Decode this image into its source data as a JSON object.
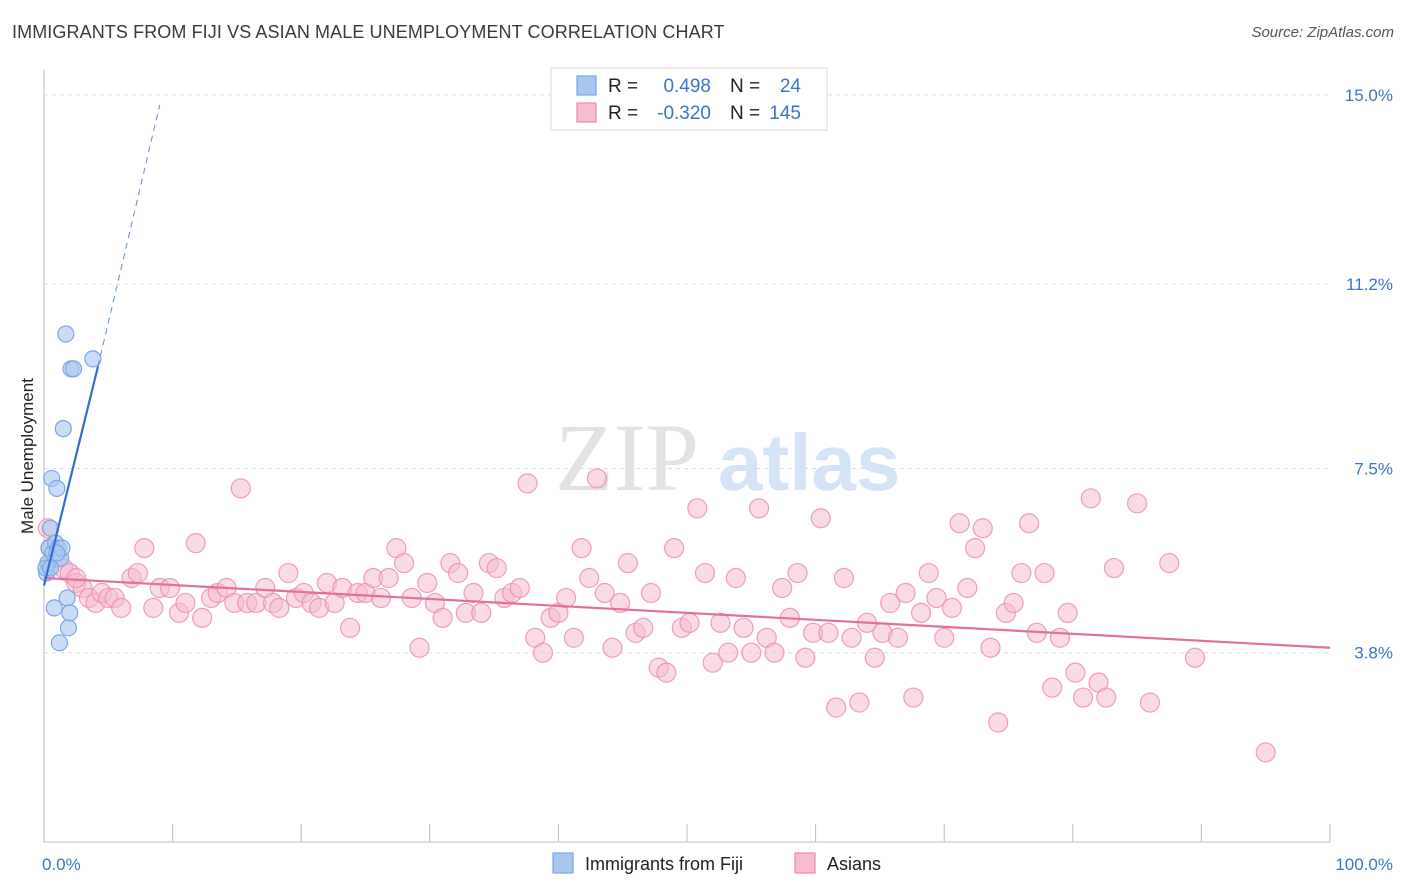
{
  "title": "IMMIGRANTS FROM FIJI VS ASIAN MALE UNEMPLOYMENT CORRELATION CHART",
  "source": "Source: ZipAtlas.com",
  "colors": {
    "blue": "#7aa6e6",
    "blue_fill": "#a9c6f0",
    "blue_line": "#2f6fd0",
    "pink": "#ec8aa9",
    "pink_fill": "#f6bcd0",
    "pink_line": "#e2719a",
    "tick": "#3b74c9",
    "grid": "#dcdcdc"
  },
  "chart_data": {
    "type": "scatter",
    "ylabel": "Male Unemployment",
    "xlim": [
      0,
      100
    ],
    "ylim": [
      0,
      15.5
    ],
    "x_tick_labels": [
      "0.0%",
      "100.0%"
    ],
    "y_ticks": [
      {
        "value": 3.8,
        "label": "3.8%"
      },
      {
        "value": 7.5,
        "label": "7.5%"
      },
      {
        "value": 11.2,
        "label": "11.2%"
      },
      {
        "value": 15.0,
        "label": "15.0%"
      }
    ],
    "legend": {
      "rows": [
        {
          "r_label": "R =",
          "r": "0.498",
          "n_label": "N =",
          "n": "24"
        },
        {
          "r_label": "R =",
          "r": "-0.320",
          "n_label": "N =",
          "n": "145"
        }
      ]
    },
    "series": [
      {
        "name": "Immigrants from Fiji",
        "trend": {
          "x0": 0.0,
          "y0": 5.15,
          "x1": 4.2,
          "y1": 9.55,
          "dash_x1": 9.0,
          "dash_y1": 14.8
        },
        "points": [
          [
            0.2,
            5.4
          ],
          [
            0.3,
            5.6
          ],
          [
            0.4,
            5.9
          ],
          [
            0.5,
            6.3
          ],
          [
            0.6,
            7.3
          ],
          [
            0.7,
            5.8
          ],
          [
            0.8,
            4.7
          ],
          [
            0.9,
            6.0
          ],
          [
            1.0,
            7.1
          ],
          [
            1.1,
            5.9
          ],
          [
            1.2,
            4.0
          ],
          [
            1.3,
            5.7
          ],
          [
            1.4,
            5.9
          ],
          [
            1.5,
            8.3
          ],
          [
            1.7,
            10.2
          ],
          [
            1.8,
            4.9
          ],
          [
            1.9,
            4.3
          ],
          [
            2.0,
            4.6
          ],
          [
            2.1,
            9.5
          ],
          [
            2.3,
            9.5
          ],
          [
            3.8,
            9.7
          ],
          [
            0.15,
            5.5
          ],
          [
            0.5,
            5.5
          ],
          [
            1.0,
            5.8
          ]
        ]
      },
      {
        "name": "Asians",
        "trend": {
          "x0": 0.0,
          "y0": 5.3,
          "x1": 100.0,
          "y1": 3.9
        },
        "points": [
          [
            0.3,
            6.3
          ],
          [
            0.5,
            5.9
          ],
          [
            1.0,
            5.7
          ],
          [
            1.5,
            5.5
          ],
          [
            2.0,
            5.4
          ],
          [
            2.5,
            5.2
          ],
          [
            3.0,
            5.1
          ],
          [
            3.5,
            4.9
          ],
          [
            4.0,
            4.8
          ],
          [
            4.5,
            5.0
          ],
          [
            5.0,
            4.9
          ],
          [
            5.5,
            4.9
          ],
          [
            6.0,
            4.7
          ],
          [
            6.8,
            5.3
          ],
          [
            7.3,
            5.4
          ],
          [
            7.8,
            5.9
          ],
          [
            8.5,
            4.7
          ],
          [
            9.0,
            5.1
          ],
          [
            9.8,
            5.1
          ],
          [
            10.5,
            4.6
          ],
          [
            11.0,
            4.8
          ],
          [
            11.8,
            6.0
          ],
          [
            12.3,
            4.5
          ],
          [
            13.0,
            4.9
          ],
          [
            13.5,
            5.0
          ],
          [
            14.2,
            5.1
          ],
          [
            14.8,
            4.8
          ],
          [
            15.3,
            7.1
          ],
          [
            15.8,
            4.8
          ],
          [
            16.5,
            4.8
          ],
          [
            17.2,
            5.1
          ],
          [
            17.8,
            4.8
          ],
          [
            18.3,
            4.7
          ],
          [
            19.0,
            5.4
          ],
          [
            19.6,
            4.9
          ],
          [
            20.2,
            5.0
          ],
          [
            20.8,
            4.8
          ],
          [
            21.4,
            4.7
          ],
          [
            22.0,
            5.2
          ],
          [
            22.6,
            4.8
          ],
          [
            23.2,
            5.1
          ],
          [
            23.8,
            4.3
          ],
          [
            24.4,
            5.0
          ],
          [
            25.0,
            5.0
          ],
          [
            25.6,
            5.3
          ],
          [
            26.2,
            4.9
          ],
          [
            26.8,
            5.3
          ],
          [
            27.4,
            5.9
          ],
          [
            28.0,
            5.6
          ],
          [
            28.6,
            4.9
          ],
          [
            29.2,
            3.9
          ],
          [
            29.8,
            5.2
          ],
          [
            30.4,
            4.8
          ],
          [
            31.0,
            4.5
          ],
          [
            31.6,
            5.6
          ],
          [
            32.2,
            5.4
          ],
          [
            32.8,
            4.6
          ],
          [
            33.4,
            5.0
          ],
          [
            34.0,
            4.6
          ],
          [
            34.6,
            5.6
          ],
          [
            35.2,
            5.5
          ],
          [
            35.8,
            4.9
          ],
          [
            36.4,
            5.0
          ],
          [
            37.0,
            5.1
          ],
          [
            37.6,
            7.2
          ],
          [
            38.2,
            4.1
          ],
          [
            38.8,
            3.8
          ],
          [
            39.4,
            4.5
          ],
          [
            40.0,
            4.6
          ],
          [
            40.6,
            4.9
          ],
          [
            41.2,
            4.1
          ],
          [
            41.8,
            5.9
          ],
          [
            42.4,
            5.3
          ],
          [
            43.0,
            7.3
          ],
          [
            43.6,
            5.0
          ],
          [
            44.2,
            3.9
          ],
          [
            44.8,
            4.8
          ],
          [
            45.4,
            5.6
          ],
          [
            46.0,
            4.2
          ],
          [
            46.6,
            4.3
          ],
          [
            47.2,
            5.0
          ],
          [
            47.8,
            3.5
          ],
          [
            48.4,
            3.4
          ],
          [
            49.0,
            5.9
          ],
          [
            49.6,
            4.3
          ],
          [
            50.2,
            4.4
          ],
          [
            50.8,
            6.7
          ],
          [
            51.4,
            5.4
          ],
          [
            52.0,
            3.6
          ],
          [
            52.6,
            4.4
          ],
          [
            53.2,
            3.8
          ],
          [
            53.8,
            5.3
          ],
          [
            54.4,
            4.3
          ],
          [
            55.0,
            3.8
          ],
          [
            55.6,
            6.7
          ],
          [
            56.2,
            4.1
          ],
          [
            56.8,
            3.8
          ],
          [
            57.4,
            5.1
          ],
          [
            58.0,
            4.5
          ],
          [
            58.6,
            5.4
          ],
          [
            59.2,
            3.7
          ],
          [
            59.8,
            4.2
          ],
          [
            60.4,
            6.5
          ],
          [
            61.0,
            4.2
          ],
          [
            61.6,
            2.7
          ],
          [
            62.2,
            5.3
          ],
          [
            62.8,
            4.1
          ],
          [
            63.4,
            2.8
          ],
          [
            64.0,
            4.4
          ],
          [
            64.6,
            3.7
          ],
          [
            65.2,
            4.2
          ],
          [
            65.8,
            4.8
          ],
          [
            66.4,
            4.1
          ],
          [
            67.0,
            5.0
          ],
          [
            67.6,
            2.9
          ],
          [
            68.2,
            4.6
          ],
          [
            68.8,
            5.4
          ],
          [
            69.4,
            4.9
          ],
          [
            70.0,
            4.1
          ],
          [
            70.6,
            4.7
          ],
          [
            71.2,
            6.4
          ],
          [
            71.8,
            5.1
          ],
          [
            72.4,
            5.9
          ],
          [
            73.0,
            6.3
          ],
          [
            73.6,
            3.9
          ],
          [
            74.2,
            2.4
          ],
          [
            74.8,
            4.6
          ],
          [
            75.4,
            4.8
          ],
          [
            76.0,
            5.4
          ],
          [
            76.6,
            6.4
          ],
          [
            77.2,
            4.2
          ],
          [
            77.8,
            5.4
          ],
          [
            78.4,
            3.1
          ],
          [
            79.0,
            4.1
          ],
          [
            79.6,
            4.6
          ],
          [
            80.2,
            3.4
          ],
          [
            80.8,
            2.9
          ],
          [
            81.4,
            6.9
          ],
          [
            82.0,
            3.2
          ],
          [
            82.6,
            2.9
          ],
          [
            83.2,
            5.5
          ],
          [
            85.0,
            6.8
          ],
          [
            86.0,
            2.8
          ],
          [
            87.5,
            5.6
          ],
          [
            89.5,
            3.7
          ],
          [
            95.0,
            1.8
          ],
          [
            2.5,
            5.3
          ]
        ]
      }
    ]
  },
  "bottom_legend": {
    "items": [
      {
        "label": "Immigrants from Fiji"
      },
      {
        "label": "Asians"
      }
    ]
  },
  "watermark": {
    "part1": "ZIP",
    "part2": "atlas"
  }
}
